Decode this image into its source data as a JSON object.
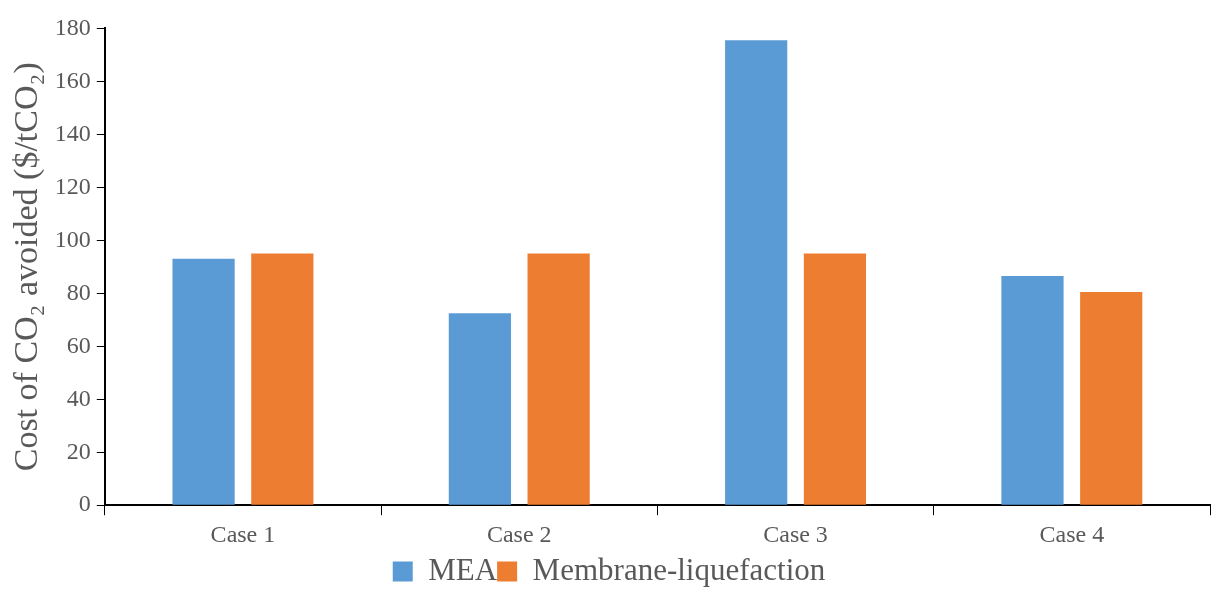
{
  "chart_data": {
    "type": "bar",
    "ylabel": "Cost of CO₂ avoided ($/tCO₂)",
    "categories": [
      "Case 1",
      "Case 2",
      "Case 3",
      "Case 4"
    ],
    "series": [
      {
        "name": "MEA",
        "color": "#5b9bd5",
        "values": [
          93,
          72.5,
          175.5,
          86.5
        ]
      },
      {
        "name": "Membrane-liquefaction",
        "color": "#ed7d31",
        "values": [
          95,
          95,
          95,
          80.5
        ]
      }
    ],
    "ylim": [
      0,
      180
    ],
    "yticks": [
      0,
      20,
      40,
      60,
      80,
      100,
      120,
      140,
      160,
      180
    ],
    "grid": false,
    "legend": "bottom"
  }
}
